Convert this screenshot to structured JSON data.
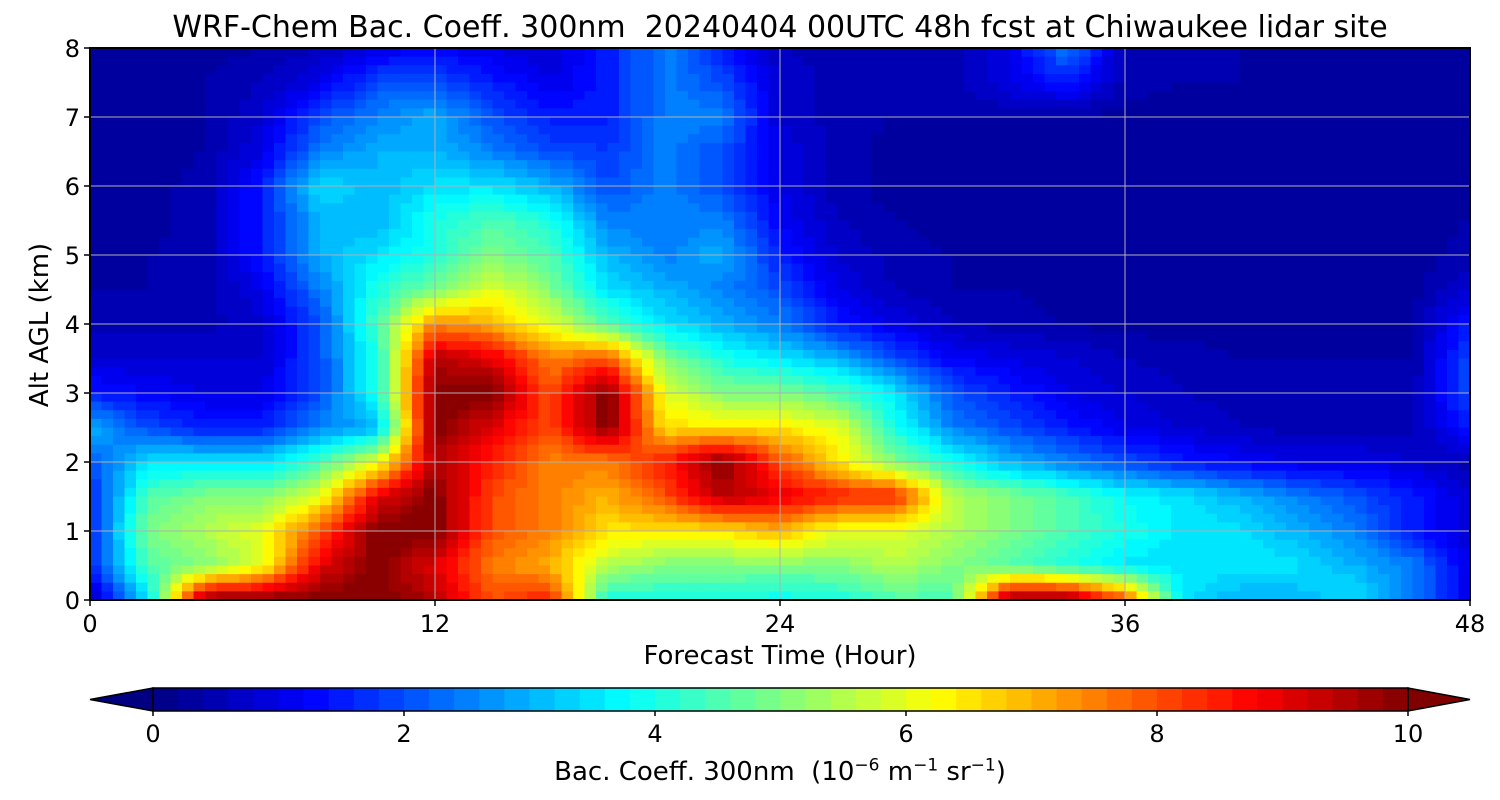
{
  "chart_data": {
    "type": "heatmap",
    "title": "WRF-Chem Bac. Coeff. 300nm  20240404 00UTC 48h fcst at Chiwaukee lidar site",
    "xlabel": "Forecast Time (Hour)",
    "ylabel": "Alt AGL (km)",
    "xlim": [
      0,
      48
    ],
    "ylim": [
      0,
      8
    ],
    "xticks": [
      0,
      12,
      24,
      36,
      48
    ],
    "yticks": [
      0,
      1,
      2,
      3,
      4,
      5,
      6,
      7,
      8
    ],
    "grid": true,
    "colormap": "jet",
    "colorbar": {
      "label_main": "Bac. Coeff. 300nm  (10",
      "label_exp1": "−6",
      "label_mid": " m",
      "label_exp2": "−1",
      "label_mid2": " sr",
      "label_exp3": "−1",
      "label_end": ")",
      "range": [
        0,
        10
      ],
      "ticks": [
        0,
        2,
        4,
        6,
        8,
        10
      ],
      "extend": "both",
      "orientation": "horizontal"
    },
    "x_hours": [
      0,
      2,
      4,
      6,
      8,
      10,
      12,
      14,
      16,
      18,
      20,
      22,
      24,
      26,
      28,
      30,
      32,
      34,
      36,
      38,
      40,
      42,
      44,
      46,
      48
    ],
    "y_km": [
      0,
      0.5,
      1,
      1.5,
      2,
      2.5,
      3,
      3.5,
      4,
      4.5,
      5,
      5.5,
      6,
      6.5,
      7,
      7.5,
      8
    ],
    "values_rows_by_altitude": [
      [
        0.5,
        3.5,
        10,
        10,
        10,
        10,
        9.5,
        8.0,
        8.5,
        4.0,
        4.0,
        4.0,
        3.8,
        4.0,
        4.5,
        4.5,
        10,
        10,
        8.0,
        3.5,
        3.0,
        3.0,
        3.5,
        2.5,
        1.0
      ],
      [
        1.5,
        4.5,
        5.0,
        6.0,
        9.0,
        10,
        9.0,
        7.5,
        7.0,
        5.5,
        5.0,
        5.0,
        5.0,
        5.0,
        5.5,
        5.0,
        4.5,
        4.0,
        3.5,
        3.5,
        3.5,
        3.5,
        3.0,
        2.5,
        1.0
      ],
      [
        1.5,
        5.0,
        5.5,
        6.0,
        8.0,
        10,
        10,
        8.0,
        7.5,
        6.5,
        6.5,
        6.5,
        7.0,
        6.0,
        6.0,
        5.5,
        5.0,
        4.5,
        4.0,
        3.5,
        3.5,
        3.0,
        2.5,
        1.5,
        0.8
      ],
      [
        1.5,
        4.5,
        5.0,
        5.0,
        6.0,
        9.0,
        10,
        8.0,
        7.5,
        7.0,
        8.0,
        9.5,
        9.0,
        8.5,
        8.5,
        5.5,
        5.0,
        4.5,
        3.8,
        3.5,
        3.0,
        2.5,
        2.0,
        1.5,
        0.8
      ],
      [
        2.0,
        3.5,
        3.5,
        3.5,
        4.5,
        6.0,
        9.5,
        8.5,
        7.5,
        7.5,
        8.5,
        10,
        8.0,
        6.5,
        5.0,
        4.0,
        3.0,
        2.5,
        2.0,
        1.5,
        1.2,
        1.0,
        1.0,
        0.8,
        0.5
      ],
      [
        3.0,
        2.0,
        1.5,
        1.5,
        2.5,
        3.0,
        10,
        9.0,
        8.0,
        10,
        6.5,
        6.5,
        6.5,
        6.0,
        4.0,
        2.5,
        2.0,
        1.5,
        1.0,
        0.8,
        0.6,
        0.5,
        0.5,
        0.5,
        1.5
      ],
      [
        1.5,
        1.2,
        1.0,
        1.0,
        2.0,
        4.0,
        10,
        10,
        8.0,
        10,
        6.0,
        5.0,
        5.0,
        4.5,
        3.5,
        2.0,
        1.5,
        1.0,
        0.8,
        0.6,
        0.5,
        0.5,
        0.5,
        0.5,
        2.0
      ],
      [
        0.8,
        0.8,
        0.8,
        0.8,
        2.0,
        4.0,
        9.5,
        9.0,
        7.5,
        8.0,
        5.0,
        4.0,
        3.5,
        3.0,
        2.0,
        1.2,
        1.0,
        0.8,
        0.6,
        0.5,
        0.4,
        0.4,
        0.4,
        0.4,
        2.0
      ],
      [
        0.5,
        0.5,
        0.5,
        0.8,
        2.0,
        4.5,
        7.5,
        7.0,
        6.0,
        4.5,
        3.5,
        3.0,
        2.5,
        1.5,
        1.0,
        0.6,
        0.5,
        0.4,
        0.3,
        0.3,
        0.3,
        0.3,
        0.3,
        0.4,
        1.5
      ],
      [
        0.4,
        0.4,
        0.5,
        1.0,
        2.5,
        4.0,
        5.0,
        6.0,
        5.0,
        3.5,
        3.0,
        2.5,
        2.0,
        1.0,
        0.6,
        0.4,
        0.4,
        0.3,
        0.3,
        0.3,
        0.3,
        0.3,
        0.3,
        0.3,
        0.8
      ],
      [
        0.3,
        0.4,
        0.5,
        1.5,
        3.0,
        3.5,
        4.0,
        5.0,
        4.5,
        3.0,
        2.5,
        3.0,
        1.5,
        0.8,
        0.5,
        0.4,
        0.3,
        0.3,
        0.3,
        0.3,
        0.3,
        0.3,
        0.3,
        0.3,
        0.5
      ],
      [
        0.3,
        0.3,
        0.5,
        1.5,
        3.0,
        3.0,
        4.0,
        4.5,
        4.0,
        2.5,
        2.5,
        2.5,
        1.2,
        0.6,
        0.4,
        0.3,
        0.3,
        0.3,
        0.3,
        0.3,
        0.3,
        0.3,
        0.3,
        0.3,
        0.4
      ],
      [
        0.3,
        0.3,
        0.5,
        1.5,
        3.5,
        3.0,
        3.5,
        3.5,
        3.0,
        2.0,
        2.5,
        2.0,
        1.0,
        0.5,
        0.3,
        0.3,
        0.3,
        0.3,
        0.3,
        0.3,
        0.3,
        0.3,
        0.3,
        0.3,
        0.3
      ],
      [
        0.3,
        0.3,
        0.4,
        1.0,
        2.5,
        3.0,
        3.0,
        2.5,
        2.0,
        1.8,
        2.5,
        2.0,
        1.0,
        0.5,
        0.3,
        0.3,
        0.3,
        0.3,
        0.3,
        0.3,
        0.3,
        0.3,
        0.3,
        0.3,
        0.3
      ],
      [
        0.3,
        0.3,
        0.4,
        0.8,
        2.0,
        2.5,
        3.0,
        2.0,
        1.5,
        1.5,
        2.5,
        2.5,
        0.8,
        0.5,
        0.4,
        0.4,
        0.4,
        0.4,
        0.3,
        0.3,
        0.3,
        0.3,
        0.3,
        0.3,
        0.3
      ],
      [
        0.3,
        0.3,
        0.4,
        0.6,
        1.0,
        2.0,
        2.0,
        1.5,
        1.0,
        1.5,
        2.5,
        2.0,
        0.8,
        0.5,
        0.5,
        0.5,
        1.0,
        1.5,
        0.5,
        0.4,
        0.4,
        0.3,
        0.3,
        0.3,
        0.3
      ],
      [
        0.3,
        0.3,
        0.3,
        0.4,
        0.6,
        1.0,
        1.2,
        1.0,
        0.8,
        1.5,
        2.5,
        1.5,
        0.6,
        0.5,
        0.5,
        0.5,
        1.0,
        2.5,
        0.5,
        0.4,
        0.4,
        0.3,
        0.3,
        0.3,
        0.3
      ]
    ]
  }
}
